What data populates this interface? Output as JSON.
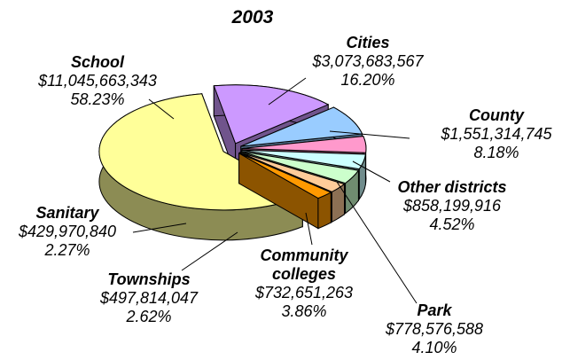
{
  "chart_data": {
    "type": "pie",
    "title": "2003",
    "categories": [
      "Cities",
      "County",
      "Other districts",
      "Park",
      "Community colleges",
      "Townships",
      "Sanitary",
      "School"
    ],
    "values": [
      3073683567,
      1551314745,
      858199916,
      778576588,
      732651263,
      497814047,
      429970840,
      11045663343
    ],
    "value_labels": [
      "$3,073,683,567",
      "$1,551,314,745",
      "$858,199,916",
      "$778,576,588",
      "$732,651,263",
      "$497,814,047",
      "$429,970,840",
      "$11,045,663,343"
    ],
    "percents": [
      16.2,
      8.18,
      4.52,
      4.1,
      3.86,
      2.62,
      2.27,
      58.23
    ],
    "percent_labels": [
      "16.20%",
      "8.18%",
      "4.52%",
      "4.10%",
      "3.86%",
      "2.62%",
      "2.27%",
      "58.23%"
    ],
    "colors": [
      "#cc99ff",
      "#99ccff",
      "#ff99cc",
      "#ccffff",
      "#ccffcc",
      "#ffcc99",
      "#ff9900",
      "#ffff99"
    ]
  }
}
